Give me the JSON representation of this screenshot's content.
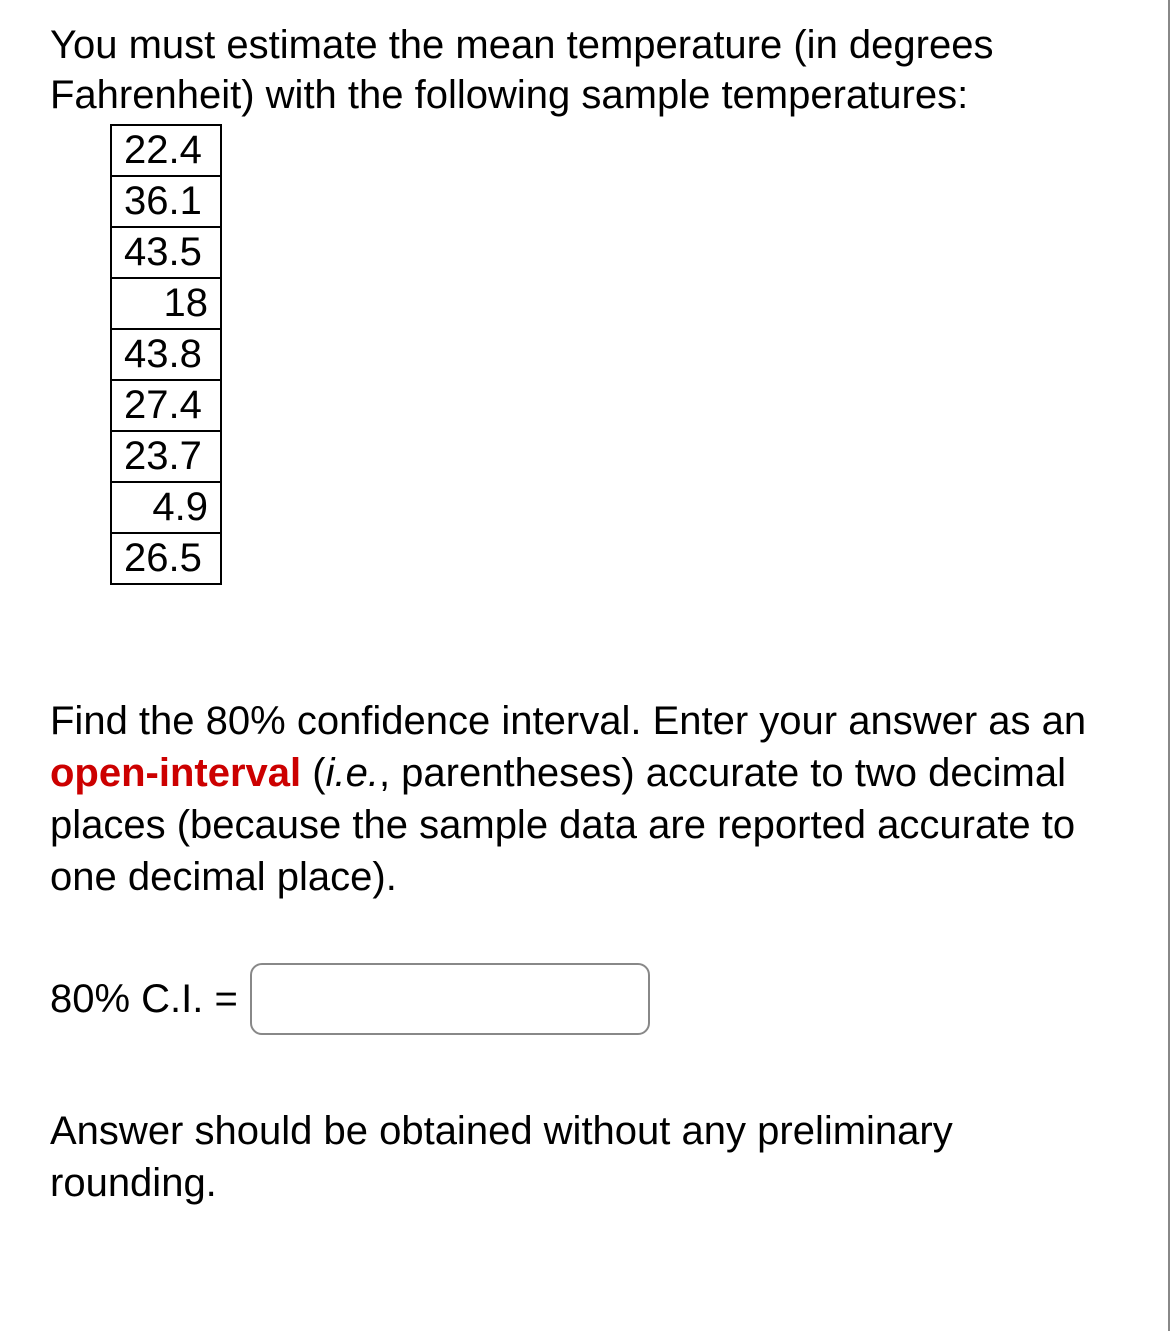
{
  "intro": "You must estimate the mean temperature (in degrees Fahrenheit) with the following sample temperatures:",
  "table": {
    "rows": [
      {
        "value": "22.4",
        "align": "left"
      },
      {
        "value": "36.1",
        "align": "left"
      },
      {
        "value": "43.5",
        "align": "left"
      },
      {
        "value": "18",
        "align": "right"
      },
      {
        "value": "43.8",
        "align": "left"
      },
      {
        "value": "27.4",
        "align": "left"
      },
      {
        "value": "23.7",
        "align": "left"
      },
      {
        "value": "4.9",
        "align": "right"
      },
      {
        "value": "26.5",
        "align": "left"
      }
    ],
    "border_color": "#000000",
    "cell_fontsize": 40
  },
  "question": {
    "part1": "Find the 80% confidence interval. Enter your answer as an ",
    "highlight": "open-interval",
    "part2": " (",
    "italic": "i.e.",
    "part3": ", parentheses) accurate to two decimal places (because the sample data are reported accurate to one decimal place).",
    "highlight_color": "#cc0000"
  },
  "answer": {
    "label": "80% C.I. = ",
    "value": ""
  },
  "note": "Answer should be obtained without any preliminary rounding.",
  "colors": {
    "text": "#000000",
    "background": "#ffffff",
    "input_border": "#888888"
  }
}
